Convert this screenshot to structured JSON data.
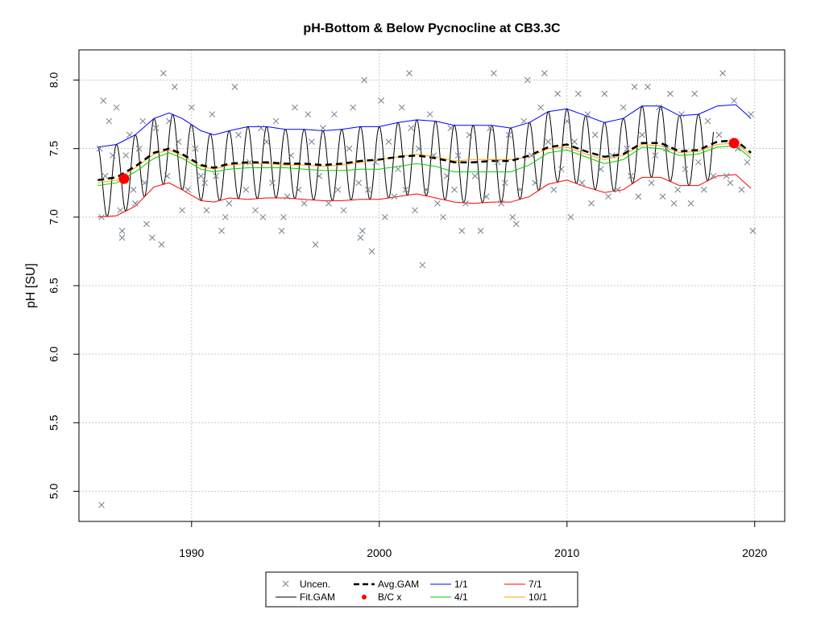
{
  "chart_data": {
    "type": "scatter",
    "title": "pH-Bottom & Below Pycnocline at CB3.3C",
    "xlabel": "",
    "ylabel": "pH [SU]",
    "xlim": [
      1984.0,
      2021.6
    ],
    "ylim": [
      4.78,
      8.22
    ],
    "x_ticks": [
      1990,
      2000,
      2010,
      2020
    ],
    "x_tick_labels": [
      "1990",
      "2000",
      "2010",
      "2020"
    ],
    "y_ticks": [
      5.0,
      5.5,
      6.0,
      6.5,
      7.0,
      7.5,
      8.0
    ],
    "y_tick_labels": [
      "5.0",
      "5.5",
      "6.0",
      "6.5",
      "7.0",
      "7.5",
      "8.0"
    ],
    "grid": true,
    "legend_position": "bottom",
    "legend": [
      {
        "label": "Uncen.",
        "type": "marker",
        "color": "#708090"
      },
      {
        "label": "Fit.GAM",
        "type": "line",
        "color": "#000000"
      },
      {
        "label": "Avg.GAM",
        "type": "dashed-line",
        "color": "#000000"
      },
      {
        "label": "B/C x",
        "type": "point",
        "color": "#ff0000"
      },
      {
        "label": "1/1",
        "type": "line",
        "color": "#0000ff"
      },
      {
        "label": "4/1",
        "type": "line",
        "color": "#00cd00"
      },
      {
        "label": "7/1",
        "type": "line",
        "color": "#ff0000"
      },
      {
        "label": "10/1",
        "type": "line",
        "color": "#ffa500"
      }
    ],
    "points": [
      [
        1985.1,
        7.5
      ],
      [
        1985.3,
        7.85
      ],
      [
        1985.4,
        7.3
      ],
      [
        1985.2,
        7.0
      ],
      [
        1985.2,
        4.9
      ],
      [
        1985.6,
        7.7
      ],
      [
        1985.8,
        7.45
      ],
      [
        1986.0,
        7.8
      ],
      [
        1986.2,
        7.05
      ],
      [
        1986.3,
        6.9
      ],
      [
        1986.3,
        6.85
      ],
      [
        1986.5,
        7.45
      ],
      [
        1986.7,
        7.6
      ],
      [
        1986.9,
        7.2
      ],
      [
        1987.0,
        7.1
      ],
      [
        1987.2,
        7.5
      ],
      [
        1987.4,
        7.7
      ],
      [
        1987.5,
        7.25
      ],
      [
        1987.6,
        6.95
      ],
      [
        1987.9,
        6.85
      ],
      [
        1988.1,
        7.65
      ],
      [
        1988.4,
        6.8
      ],
      [
        1988.5,
        8.05
      ],
      [
        1988.7,
        7.3
      ],
      [
        1988.8,
        7.7
      ],
      [
        1989.1,
        7.95
      ],
      [
        1989.3,
        7.55
      ],
      [
        1989.5,
        7.05
      ],
      [
        1989.8,
        7.2
      ],
      [
        1990.0,
        7.8
      ],
      [
        1990.2,
        7.5
      ],
      [
        1990.5,
        7.3
      ],
      [
        1990.7,
        7.25
      ],
      [
        1990.8,
        7.05
      ],
      [
        1991.1,
        7.75
      ],
      [
        1991.3,
        7.3
      ],
      [
        1991.6,
        6.9
      ],
      [
        1991.8,
        7.0
      ],
      [
        1992.0,
        7.1
      ],
      [
        1992.3,
        7.95
      ],
      [
        1992.5,
        7.6
      ],
      [
        1992.9,
        7.2
      ],
      [
        1993.1,
        7.4
      ],
      [
        1993.4,
        7.05
      ],
      [
        1993.7,
        7.65
      ],
      [
        1993.8,
        7.0
      ],
      [
        1994.0,
        7.55
      ],
      [
        1994.3,
        7.25
      ],
      [
        1994.5,
        7.7
      ],
      [
        1994.8,
        6.9
      ],
      [
        1994.9,
        7.0
      ],
      [
        1995.1,
        7.15
      ],
      [
        1995.3,
        7.45
      ],
      [
        1995.5,
        7.8
      ],
      [
        1995.7,
        7.2
      ],
      [
        1996.0,
        7.1
      ],
      [
        1996.2,
        7.75
      ],
      [
        1996.4,
        7.55
      ],
      [
        1996.6,
        6.8
      ],
      [
        1996.8,
        7.3
      ],
      [
        1997.0,
        7.65
      ],
      [
        1997.3,
        7.1
      ],
      [
        1997.6,
        7.75
      ],
      [
        1997.8,
        7.2
      ],
      [
        1998.1,
        7.05
      ],
      [
        1998.4,
        7.5
      ],
      [
        1998.6,
        7.8
      ],
      [
        1998.9,
        7.25
      ],
      [
        1999.0,
        6.85
      ],
      [
        1999.1,
        6.9
      ],
      [
        1999.2,
        8.0
      ],
      [
        1999.4,
        7.2
      ],
      [
        1999.6,
        6.75
      ],
      [
        1999.8,
        7.4
      ],
      [
        2000.1,
        7.85
      ],
      [
        2000.3,
        7.0
      ],
      [
        2000.5,
        7.55
      ],
      [
        2000.8,
        7.15
      ],
      [
        2001.0,
        7.35
      ],
      [
        2001.2,
        7.8
      ],
      [
        2001.4,
        7.2
      ],
      [
        2001.6,
        8.05
      ],
      [
        2001.7,
        7.65
      ],
      [
        2001.9,
        7.05
      ],
      [
        2002.1,
        7.5
      ],
      [
        2002.3,
        6.65
      ],
      [
        2002.5,
        7.2
      ],
      [
        2002.7,
        7.75
      ],
      [
        2002.9,
        7.45
      ],
      [
        2003.1,
        7.1
      ],
      [
        2003.4,
        7.0
      ],
      [
        2003.6,
        7.3
      ],
      [
        2003.8,
        7.65
      ],
      [
        2004.0,
        7.2
      ],
      [
        2004.2,
        7.45
      ],
      [
        2004.4,
        6.9
      ],
      [
        2004.6,
        7.1
      ],
      [
        2004.8,
        7.6
      ],
      [
        2005.1,
        7.3
      ],
      [
        2005.4,
        6.9
      ],
      [
        2005.7,
        7.15
      ],
      [
        2005.9,
        7.65
      ],
      [
        2006.1,
        8.05
      ],
      [
        2006.3,
        7.4
      ],
      [
        2006.5,
        7.1
      ],
      [
        2006.7,
        7.25
      ],
      [
        2006.9,
        7.6
      ],
      [
        2007.1,
        7.0
      ],
      [
        2007.3,
        6.95
      ],
      [
        2007.5,
        7.2
      ],
      [
        2007.7,
        7.7
      ],
      [
        2007.9,
        8.0
      ],
      [
        2008.1,
        7.45
      ],
      [
        2008.3,
        7.25
      ],
      [
        2008.6,
        7.8
      ],
      [
        2008.8,
        8.05
      ],
      [
        2009.0,
        7.55
      ],
      [
        2009.3,
        7.2
      ],
      [
        2009.5,
        7.9
      ],
      [
        2009.7,
        7.35
      ],
      [
        2010.0,
        7.7
      ],
      [
        2010.2,
        7.0
      ],
      [
        2010.4,
        7.55
      ],
      [
        2010.6,
        7.9
      ],
      [
        2010.8,
        7.25
      ],
      [
        2011.1,
        7.75
      ],
      [
        2011.3,
        7.1
      ],
      [
        2011.5,
        7.6
      ],
      [
        2011.8,
        7.35
      ],
      [
        2012.0,
        7.9
      ],
      [
        2012.2,
        7.15
      ],
      [
        2012.4,
        7.45
      ],
      [
        2012.7,
        7.2
      ],
      [
        2013.0,
        7.8
      ],
      [
        2013.2,
        7.5
      ],
      [
        2013.4,
        7.3
      ],
      [
        2013.6,
        7.95
      ],
      [
        2013.8,
        7.15
      ],
      [
        2014.0,
        7.6
      ],
      [
        2014.3,
        7.95
      ],
      [
        2014.5,
        7.25
      ],
      [
        2014.7,
        7.45
      ],
      [
        2014.9,
        7.8
      ],
      [
        2015.1,
        7.15
      ],
      [
        2015.3,
        7.5
      ],
      [
        2015.5,
        7.9
      ],
      [
        2015.7,
        7.1
      ],
      [
        2015.9,
        7.2
      ],
      [
        2016.1,
        7.75
      ],
      [
        2016.3,
        7.35
      ],
      [
        2016.6,
        7.1
      ],
      [
        2016.8,
        7.9
      ],
      [
        2017.0,
        7.4
      ],
      [
        2017.3,
        7.2
      ],
      [
        2017.5,
        7.7
      ],
      [
        2017.8,
        7.3
      ],
      [
        2018.1,
        7.6
      ],
      [
        2018.3,
        8.05
      ],
      [
        2018.5,
        7.3
      ],
      [
        2018.7,
        7.25
      ],
      [
        2018.9,
        7.85
      ],
      [
        2019.1,
        7.5
      ],
      [
        2019.3,
        7.2
      ],
      [
        2019.6,
        7.4
      ],
      [
        2019.8,
        7.75
      ],
      [
        2019.9,
        6.9
      ]
    ],
    "bc_points": [
      [
        1986.4,
        7.28
      ],
      [
        2018.9,
        7.54
      ]
    ],
    "series": [
      {
        "name": "1/1",
        "color": "#0000ff",
        "x": [
          1985.0,
          1986.0,
          1987.0,
          1988.0,
          1988.8,
          1989.5,
          1990.5,
          1991.2,
          1992.0,
          1993.0,
          1994.0,
          1995.0,
          1996.0,
          1997.0,
          1998.0,
          1999.0,
          2000.0,
          2001.0,
          2002.0,
          2003.0,
          2004.0,
          2005.0,
          2006.0,
          2007.0,
          2008.0,
          2009.0,
          2010.0,
          2011.0,
          2012.0,
          2013.0,
          2014.0,
          2015.0,
          2016.0,
          2017.0,
          2018.0,
          2019.0,
          2019.8
        ],
        "values": [
          7.51,
          7.53,
          7.6,
          7.72,
          7.76,
          7.72,
          7.63,
          7.6,
          7.63,
          7.66,
          7.66,
          7.64,
          7.64,
          7.63,
          7.64,
          7.66,
          7.66,
          7.69,
          7.71,
          7.7,
          7.67,
          7.67,
          7.67,
          7.65,
          7.69,
          7.77,
          7.79,
          7.74,
          7.69,
          7.72,
          7.81,
          7.81,
          7.74,
          7.75,
          7.81,
          7.82,
          7.72
        ]
      },
      {
        "name": "4/1",
        "color": "#00cd00",
        "x": [
          1985.0,
          1986.0,
          1987.0,
          1988.0,
          1988.8,
          1989.5,
          1990.5,
          1991.2,
          1992.0,
          1993.0,
          1994.0,
          1995.0,
          1996.0,
          1997.0,
          1998.0,
          1999.0,
          2000.0,
          2001.0,
          2002.0,
          2003.0,
          2004.0,
          2005.0,
          2006.0,
          2007.0,
          2008.0,
          2009.0,
          2010.0,
          2011.0,
          2012.0,
          2013.0,
          2014.0,
          2015.0,
          2016.0,
          2017.0,
          2018.0,
          2019.0,
          2019.8
        ],
        "values": [
          7.23,
          7.25,
          7.33,
          7.43,
          7.47,
          7.43,
          7.35,
          7.33,
          7.35,
          7.36,
          7.36,
          7.36,
          7.35,
          7.34,
          7.34,
          7.35,
          7.35,
          7.37,
          7.39,
          7.37,
          7.33,
          7.33,
          7.33,
          7.33,
          7.38,
          7.47,
          7.49,
          7.44,
          7.39,
          7.42,
          7.51,
          7.5,
          7.45,
          7.46,
          7.51,
          7.52,
          7.43
        ]
      },
      {
        "name": "7/1",
        "color": "#ff0000",
        "x": [
          1985.0,
          1986.0,
          1987.0,
          1988.0,
          1988.8,
          1989.5,
          1990.5,
          1991.2,
          1992.0,
          1993.0,
          1994.0,
          1995.0,
          1996.0,
          1997.0,
          1998.0,
          1999.0,
          2000.0,
          2001.0,
          2002.0,
          2003.0,
          2004.0,
          2005.0,
          2006.0,
          2007.0,
          2008.0,
          2009.0,
          2010.0,
          2011.0,
          2012.0,
          2013.0,
          2014.0,
          2015.0,
          2016.0,
          2017.0,
          2018.0,
          2019.0,
          2019.8
        ],
        "values": [
          7.0,
          7.01,
          7.08,
          7.22,
          7.25,
          7.2,
          7.12,
          7.11,
          7.14,
          7.13,
          7.14,
          7.14,
          7.13,
          7.12,
          7.12,
          7.13,
          7.13,
          7.15,
          7.17,
          7.14,
          7.11,
          7.1,
          7.11,
          7.11,
          7.15,
          7.24,
          7.27,
          7.22,
          7.18,
          7.2,
          7.29,
          7.29,
          7.23,
          7.23,
          7.3,
          7.31,
          7.21
        ]
      },
      {
        "name": "10/1",
        "color": "#ffa500",
        "x": [
          1985.0,
          1986.0,
          1987.0,
          1988.0,
          1988.8,
          1989.5,
          1990.5,
          1991.2,
          1992.0,
          1993.0,
          1994.0,
          1995.0,
          1996.0,
          1997.0,
          1998.0,
          1999.0,
          2000.0,
          2001.0,
          2002.0,
          2003.0,
          2004.0,
          2005.0,
          2006.0,
          2007.0,
          2008.0,
          2009.0,
          2010.0,
          2011.0,
          2012.0,
          2013.0,
          2014.0,
          2015.0,
          2016.0,
          2017.0,
          2018.0,
          2019.0,
          2019.8
        ],
        "values": [
          7.25,
          7.27,
          7.36,
          7.46,
          7.49,
          7.45,
          7.37,
          7.35,
          7.38,
          7.39,
          7.39,
          7.38,
          7.38,
          7.37,
          7.38,
          7.4,
          7.42,
          7.44,
          7.46,
          7.44,
          7.41,
          7.42,
          7.42,
          7.42,
          7.44,
          7.5,
          7.51,
          7.46,
          7.42,
          7.45,
          7.53,
          7.52,
          7.47,
          7.48,
          7.53,
          7.54,
          7.45
        ]
      },
      {
        "name": "Avg.GAM",
        "color": "#000000",
        "dashed": true,
        "x": [
          1985.0,
          1986.0,
          1987.0,
          1988.0,
          1988.8,
          1989.5,
          1990.5,
          1991.2,
          1992.0,
          1993.0,
          1994.0,
          1995.0,
          1996.0,
          1997.0,
          1998.0,
          1999.0,
          2000.0,
          2001.0,
          2002.0,
          2003.0,
          2004.0,
          2005.0,
          2006.0,
          2007.0,
          2008.0,
          2009.0,
          2010.0,
          2011.0,
          2012.0,
          2013.0,
          2014.0,
          2015.0,
          2016.0,
          2017.0,
          2018.0,
          2019.0,
          2019.8
        ],
        "values": [
          7.27,
          7.29,
          7.37,
          7.47,
          7.5,
          7.46,
          7.38,
          7.36,
          7.39,
          7.4,
          7.4,
          7.39,
          7.39,
          7.38,
          7.39,
          7.41,
          7.42,
          7.44,
          7.45,
          7.43,
          7.4,
          7.4,
          7.41,
          7.41,
          7.45,
          7.51,
          7.53,
          7.48,
          7.44,
          7.46,
          7.54,
          7.54,
          7.48,
          7.49,
          7.55,
          7.56,
          7.47
        ]
      }
    ]
  }
}
